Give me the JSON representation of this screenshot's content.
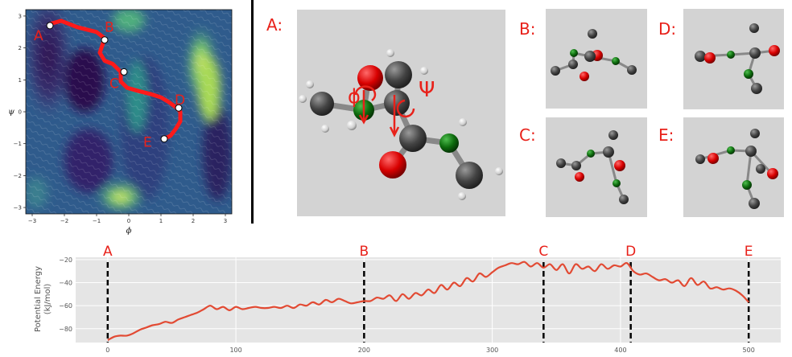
{
  "chart_data": [
    {
      "type": "heatmap",
      "xlabel": "ϕ",
      "ylabel": "ψ",
      "xlim": [
        -3.2,
        3.2
      ],
      "ylim": [
        -3.2,
        3.2
      ],
      "x_ticks": [
        "−3",
        "−2",
        "−1",
        "0",
        "1",
        "2",
        "3"
      ],
      "y_ticks": [
        "3",
        "2",
        "1",
        "0",
        "−1",
        "−2",
        "−3"
      ],
      "path_x": [
        -2.45,
        -2.1,
        -1.6,
        -1.0,
        -0.75,
        -0.9,
        -0.75,
        -0.5,
        -0.25,
        -0.25,
        -0.05,
        0.3,
        0.7,
        1.0,
        1.25,
        1.45,
        1.6,
        1.6,
        1.45,
        1.3,
        1.1
      ],
      "path_y": [
        2.75,
        2.85,
        2.65,
        2.5,
        2.3,
        1.85,
        1.6,
        1.5,
        1.25,
        0.95,
        0.75,
        0.65,
        0.55,
        0.45,
        0.3,
        0.15,
        0.0,
        -0.3,
        -0.55,
        -0.75,
        -0.85
      ],
      "points": [
        {
          "label": "A",
          "x": -2.45,
          "y": 2.7
        },
        {
          "label": "B",
          "x": -0.75,
          "y": 2.25
        },
        {
          "label": "C",
          "x": -0.15,
          "y": 1.25
        },
        {
          "label": "D",
          "x": 1.55,
          "y": 0.12
        },
        {
          "label": "E",
          "x": 1.1,
          "y": -0.85
        }
      ]
    },
    {
      "type": "line",
      "xlabel": "",
      "ylabel": "Potential Energy",
      "yunit": "(kJ/mol)",
      "xlim": [
        -25,
        525
      ],
      "ylim": [
        -92,
        -18
      ],
      "x_ticks": [
        0,
        100,
        200,
        300,
        400,
        500
      ],
      "y_ticks": [
        -20,
        -40,
        -60,
        -80
      ],
      "markers": [
        {
          "label": "A",
          "x": 0
        },
        {
          "label": "B",
          "x": 200
        },
        {
          "label": "C",
          "x": 340
        },
        {
          "label": "D",
          "x": 408
        },
        {
          "label": "E",
          "x": 500
        }
      ],
      "x": [
        0,
        5,
        10,
        15,
        20,
        25,
        30,
        35,
        40,
        45,
        50,
        55,
        60,
        65,
        70,
        75,
        80,
        85,
        90,
        95,
        100,
        105,
        110,
        115,
        120,
        125,
        130,
        135,
        140,
        145,
        150,
        155,
        160,
        165,
        170,
        175,
        180,
        185,
        190,
        195,
        200,
        205,
        210,
        215,
        220,
        225,
        230,
        235,
        240,
        245,
        250,
        255,
        260,
        265,
        270,
        275,
        280,
        285,
        290,
        295,
        300,
        305,
        310,
        315,
        320,
        325,
        330,
        335,
        340,
        345,
        350,
        355,
        360,
        365,
        370,
        375,
        380,
        385,
        390,
        395,
        400,
        405,
        410,
        415,
        420,
        425,
        430,
        435,
        440,
        445,
        450,
        455,
        460,
        465,
        470,
        475,
        480,
        485,
        490,
        495,
        500
      ],
      "y": [
        -90,
        -87,
        -86,
        -86,
        -84,
        -81,
        -79,
        -77,
        -76,
        -74,
        -75,
        -72,
        -70,
        -68,
        -66,
        -63,
        -60,
        -63,
        -61,
        -64,
        -61,
        -63,
        -62,
        -61,
        -62,
        -62,
        -61,
        -62,
        -60,
        -62,
        -59,
        -60,
        -57,
        -59,
        -55,
        -57,
        -54,
        -56,
        -58,
        -57,
        -56,
        -56,
        -53,
        -54,
        -51,
        -56,
        -50,
        -54,
        -49,
        -51,
        -46,
        -49,
        -42,
        -46,
        -40,
        -43,
        -36,
        -39,
        -32,
        -35,
        -31,
        -27,
        -25,
        -23,
        -24,
        -22,
        -26,
        -23,
        -27,
        -24,
        -29,
        -24,
        -32,
        -24,
        -28,
        -26,
        -30,
        -24,
        -28,
        -25,
        -26,
        -23,
        -30,
        -33,
        -32,
        -35,
        -38,
        -37,
        -40,
        -38,
        -43,
        -36,
        -42,
        -39,
        -45,
        -44,
        -46,
        -45,
        -47,
        -51,
        -57
      ],
      "series": [
        {
          "color": "#e24a33"
        }
      ]
    }
  ],
  "structure_panels": [
    {
      "label": "A:",
      "angle_labels": [
        "ϕ",
        "Ψ"
      ]
    },
    {
      "label": "B:"
    },
    {
      "label": "C:"
    },
    {
      "label": "D:"
    },
    {
      "label": "E:"
    }
  ]
}
